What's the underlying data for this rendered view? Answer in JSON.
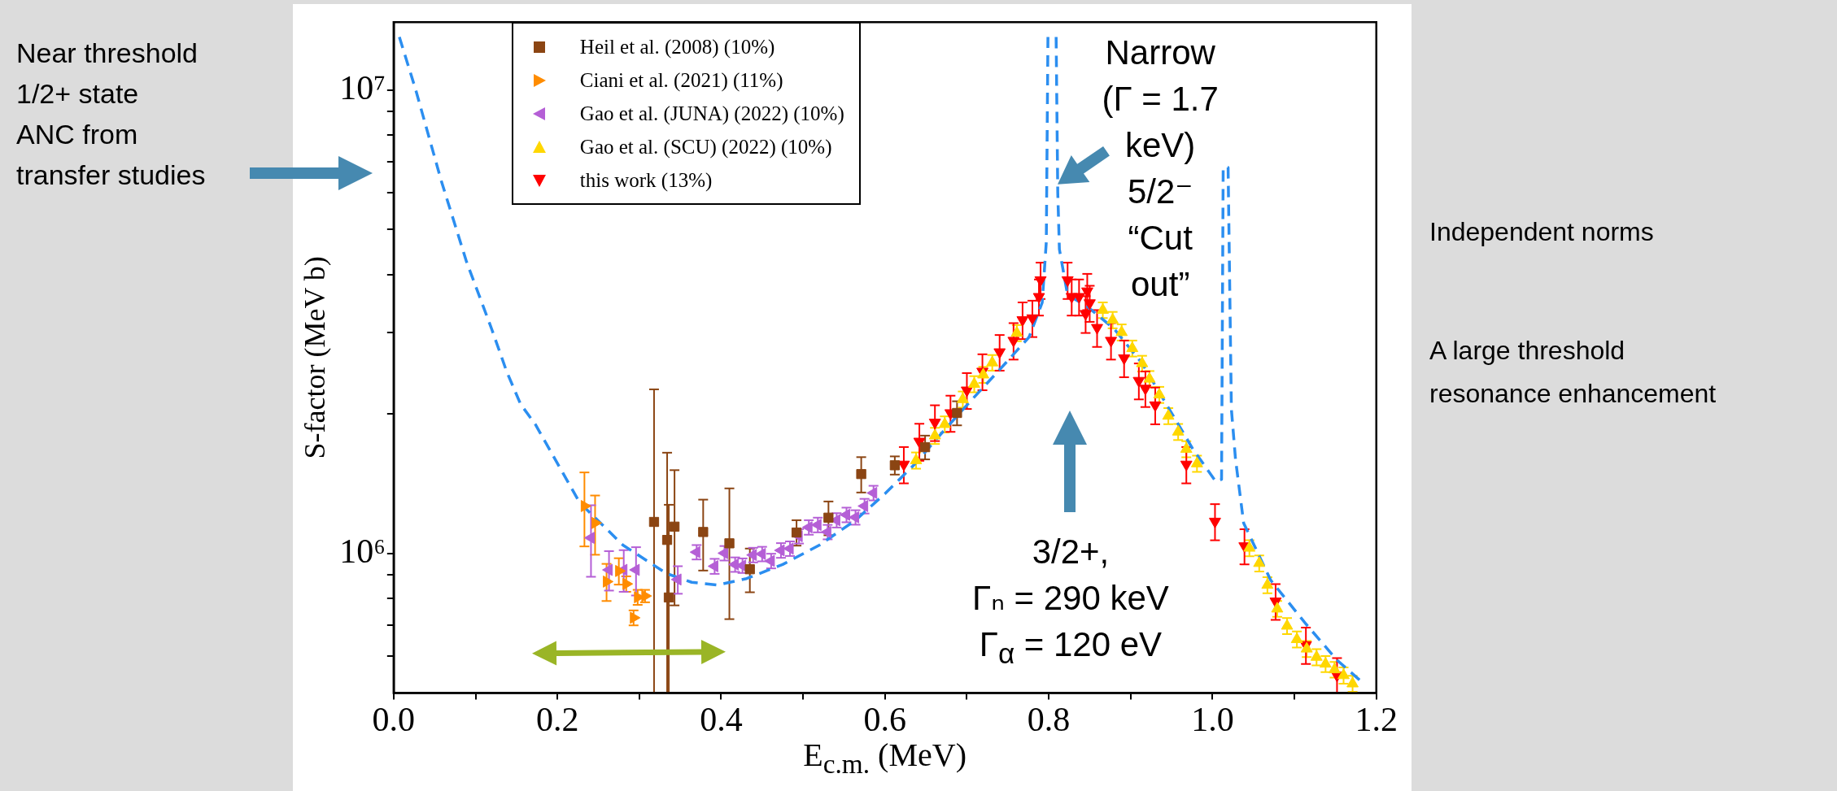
{
  "chart_data": {
    "type": "scatter",
    "xlabel": "E$_{c.m.}$ (MeV)",
    "ylabel": "S-factor (MeV b)",
    "log": "y",
    "legend": "top left",
    "xlim": [
      0,
      1.2
    ],
    "ylim": [
      500000,
      14000000
    ],
    "xticks": [
      {
        "value": 0,
        "label": "0.0"
      },
      {
        "value": 0.1,
        "label": null
      },
      {
        "value": 0.2,
        "label": "0.2"
      },
      {
        "value": 0.3,
        "label": null
      },
      {
        "value": 0.4,
        "label": "0.4"
      },
      {
        "value": 0.5,
        "label": null
      },
      {
        "value": 0.6,
        "label": "0.6"
      },
      {
        "value": 0.7,
        "label": null
      },
      {
        "value": 0.8,
        "label": "0.8"
      },
      {
        "value": 0.9,
        "label": null
      },
      {
        "value": 1.0,
        "label": "1.0"
      },
      {
        "value": 1.1,
        "label": null
      },
      {
        "value": 1.2,
        "label": "1.2"
      }
    ],
    "yticks": [
      {
        "value": 600000,
        "label": null
      },
      {
        "value": 700000,
        "label": null
      },
      {
        "value": 800000,
        "label": null
      },
      {
        "value": 900000,
        "label": null
      },
      {
        "value": 1000000,
        "label": "10⁶"
      },
      {
        "value": 2000000,
        "label": null
      },
      {
        "value": 3000000,
        "label": null
      },
      {
        "value": 4000000,
        "label": null
      },
      {
        "value": 5000000,
        "label": null
      },
      {
        "value": 6000000,
        "label": null
      },
      {
        "value": 7000000,
        "label": null
      },
      {
        "value": 8000000,
        "label": null
      },
      {
        "value": 9000000,
        "label": null
      },
      {
        "value": 10000000,
        "label": "10⁷"
      }
    ],
    "series": [
      {
        "name": "Heil et al. (2008) (10%)",
        "color": "#8b4513",
        "marker": "square",
        "x": [
          0.318,
          0.334,
          0.336,
          0.343,
          0.378,
          0.41,
          0.435,
          0.492,
          0.531,
          0.571,
          0.612,
          0.649,
          0.688
        ],
        "values": [
          1170000,
          1070000,
          804000,
          1143000,
          1113000,
          1052000,
          925000,
          1110000,
          1195000,
          1484000,
          1550000,
          1696000,
          2010000
        ],
        "errors": [
          1090000,
          580000,
          470000,
          370000,
          194000,
          330000,
          100000,
          70000,
          100000,
          130000,
          70000,
          100000,
          120000
        ]
      },
      {
        "name": "Ciani et al. (2021) (11%)",
        "color": "#ff8c00",
        "marker": "triangle",
        "x": [
          0.233,
          0.246,
          0.26,
          0.275,
          0.284,
          0.293,
          0.298,
          0.307
        ],
        "values": [
          1266000,
          1164000,
          870000,
          917000,
          860000,
          727000,
          805000,
          810000
        ],
        "errors": [
          230000,
          170000,
          80000,
          60000,
          33000,
          27000,
          30000,
          25000
        ]
      },
      {
        "name": "Gao et al. (JUNA) (2022) (10%)",
        "color": "#b55fd6",
        "marker": "triangle",
        "x": [
          0.241,
          0.263,
          0.281,
          0.296,
          0.347,
          0.37,
          0.392,
          0.404,
          0.417,
          0.426,
          0.439,
          0.45,
          0.461,
          0.473,
          0.484,
          0.495,
          0.507,
          0.518,
          0.53,
          0.541,
          0.553,
          0.564,
          0.575,
          0.586
        ],
        "values": [
          1081000,
          922000,
          922000,
          922000,
          879000,
          1007000,
          939000,
          1002000,
          947000,
          942000,
          993000,
          998000,
          964000,
          1016000,
          1025000,
          1090000,
          1139000,
          1153000,
          1113000,
          1180000,
          1212000,
          1197000,
          1266000,
          1351000
        ],
        "errors": [
          190000,
          90000,
          95000,
          110000,
          60000,
          36000,
          35000,
          36000,
          34000,
          34000,
          36000,
          36000,
          35000,
          37000,
          37000,
          39000,
          41000,
          42000,
          40000,
          42000,
          44000,
          43000,
          46000,
          49000
        ]
      },
      {
        "name": "Gao et al. (SCU) (2022) (10%)",
        "color": "#ffd700",
        "marker": "triangle",
        "x": [
          0.638,
          0.661,
          0.673,
          0.695,
          0.709,
          0.72,
          0.731,
          0.761,
          0.866,
          0.878,
          0.889,
          0.902,
          0.914,
          0.923,
          0.935,
          0.946,
          0.958,
          0.968,
          0.981,
          1.045,
          1.057,
          1.067,
          1.079,
          1.091,
          1.103,
          1.115,
          1.127,
          1.138,
          1.149,
          1.16,
          1.171
        ],
        "values": [
          1588000,
          1795000,
          1900000,
          2150000,
          2320000,
          2430000,
          2580000,
          2990000,
          3350000,
          3190000,
          3000000,
          2770000,
          2570000,
          2380000,
          2200000,
          1980000,
          1830000,
          1680000,
          1563000,
          1028000,
          953000,
          855000,
          760000,
          698000,
          653000,
          623000,
          598000,
          578000,
          562000,
          546000,
          524000
        ],
        "errors": [
          64000,
          72000,
          76000,
          86000,
          93000,
          97000,
          100000,
          120000,
          130000,
          130000,
          120000,
          110000,
          100000,
          95000,
          88000,
          79000,
          73000,
          67000,
          63000,
          41000,
          38000,
          34000,
          30000,
          28000,
          26000,
          25000,
          24000,
          23000,
          22000,
          22000,
          21000
        ]
      },
      {
        "name": "this work (13%)",
        "color": "#ff0000",
        "marker": "triangle",
        "x": [
          0.623,
          0.642,
          0.661,
          0.68,
          0.7,
          0.719,
          0.74,
          0.757,
          0.768,
          0.78,
          0.788,
          0.79,
          0.823,
          0.828,
          0.837,
          0.845,
          0.847,
          0.85,
          0.859,
          0.876,
          0.892,
          0.91,
          0.918,
          0.93,
          0.968,
          1.003,
          1.039,
          1.077,
          1.114,
          1.152
        ],
        "values": [
          1557000,
          1745000,
          1918000,
          2010000,
          2250000,
          2470000,
          2720000,
          2880000,
          3190000,
          3220000,
          3580000,
          3890000,
          3890000,
          3580000,
          3580000,
          3290000,
          3680000,
          3470000,
          3070000,
          2880000,
          2640000,
          2360000,
          2270000,
          2090000,
          1557000,
          1173000,
          1038000,
          789000,
          635000,
          546000
        ],
        "errors": [
          140000,
          160000,
          170000,
          180000,
          200000,
          220000,
          240000,
          260000,
          290000,
          290000,
          320000,
          350000,
          350000,
          320000,
          320000,
          300000,
          330000,
          310000,
          280000,
          260000,
          240000,
          210000,
          200000,
          190000,
          140000,
          105000,
          90000,
          70000,
          57000,
          49000
        ]
      },
      {
        "type": "line",
        "color": "#2b8ef0",
        "marker": "none",
        "line_style": "dashed",
        "x": [
          0.007,
          0.027,
          0.058,
          0.089,
          0.12,
          0.138,
          0.155,
          0.173,
          0.227,
          0.28,
          0.333,
          0.364,
          0.395,
          0.431,
          0.475,
          0.52,
          0.564,
          0.6,
          0.635,
          0.667,
          0.7,
          0.738,
          0.776,
          0.792,
          0.797,
          0.799,
          0.804,
          0.809,
          0.811,
          0.813,
          0.823,
          0.847,
          0.88,
          0.914,
          0.947,
          0.976,
          1.004,
          1.011,
          1.013,
          1.019,
          1.023,
          1.028,
          1.038,
          1.071,
          1.114,
          1.152,
          1.181
        ],
        "values": [
          13000000,
          10000000,
          6380000,
          4260000,
          3040000,
          2470000,
          2100000,
          1900000,
          1289000,
          1043000,
          906000,
          867000,
          855000,
          883000,
          947000,
          1043000,
          1180000,
          1346000,
          1550000,
          1800000,
          2090000,
          2470000,
          2930000,
          3480000,
          4700000,
          13000000,
          null,
          13000000,
          6000000,
          4530000,
          3610000,
          3410000,
          3050000,
          2570000,
          2050000,
          1680000,
          1430000,
          1445000,
          6800000,
          6800000,
          2050000,
          1600000,
          1163000,
          876000,
          705000,
          589000,
          531000
        ]
      }
    ],
    "annotations": [
      "Near threshold\n1/2+ state\nANC from\ntransfer studies",
      "Narrow\n(Γ = 1.7\nkeV)\n5/2⁻\n“Cut\nout”",
      "3/2+,\nΓₙ = 290 keV\nΓ$_{α}$ = 120 eV",
      "Independent norms",
      "A large threshold\nresonance enhancement"
    ]
  }
}
